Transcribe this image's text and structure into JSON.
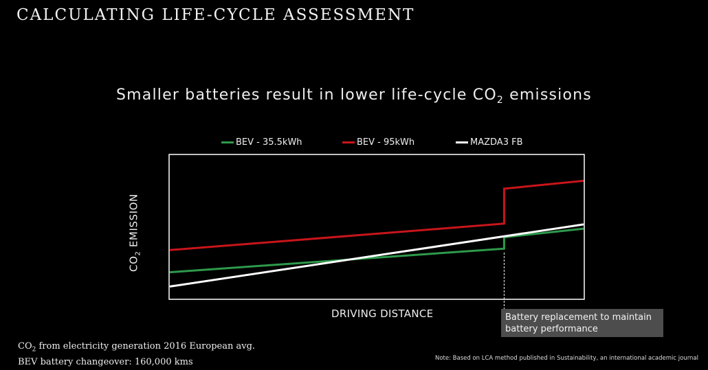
{
  "header": {
    "title": "CALCULATING LIFE-CYCLE ASSESSMENT"
  },
  "chart_data": {
    "type": "line",
    "title_main": "Smaller batteries result in lower life-cycle CO",
    "title_sub": "2",
    "title_tail": " emissions",
    "xlabel": "DRIVING DISTANCE",
    "ylabel_main": "CO",
    "ylabel_sub": "2",
    "ylabel_tail": " EMISSION",
    "xlim": [
      0,
      100
    ],
    "ylim": [
      0,
      100
    ],
    "grid": false,
    "legend_position": "top",
    "series": [
      {
        "name": "BEV - 35.5kWh",
        "color": "#2e9a4c",
        "points": [
          [
            0,
            18
          ],
          [
            80.8,
            34.5
          ],
          [
            80.8,
            42.5
          ],
          [
            100,
            48.5
          ]
        ]
      },
      {
        "name": "BEV - 95kWh",
        "color": "#c8151b",
        "points": [
          [
            0,
            33.5
          ],
          [
            80.8,
            52
          ],
          [
            80.8,
            76.5
          ],
          [
            100,
            82
          ]
        ]
      },
      {
        "name": "MAZDA3 FB",
        "color": "#ffffff",
        "points": [
          [
            0,
            8
          ],
          [
            100,
            51.5
          ]
        ]
      }
    ],
    "annotation": {
      "x": 80.8,
      "line1": "Battery replacement to maintain",
      "line2": "battery performance"
    }
  },
  "footnote": {
    "line1_a": "CO",
    "line1_sub": "2",
    "line1_b": " from electricity generation 2016 European avg.",
    "line2": "BEV battery changeover: 160,000 kms"
  },
  "note": "Note: Based on LCA method published in Sustainability, an international academic journal"
}
